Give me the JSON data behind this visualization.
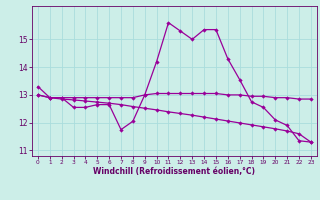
{
  "xlabel": "Windchill (Refroidissement éolien,°C)",
  "hours": [
    0,
    1,
    2,
    3,
    4,
    5,
    6,
    7,
    8,
    9,
    10,
    11,
    12,
    13,
    14,
    15,
    16,
    17,
    18,
    19,
    20,
    21,
    22,
    23
  ],
  "line1": [
    13.3,
    12.9,
    12.9,
    12.55,
    12.55,
    12.65,
    12.65,
    11.75,
    12.05,
    13.0,
    14.2,
    15.6,
    15.3,
    15.0,
    15.35,
    15.35,
    14.3,
    13.55,
    12.75,
    12.55,
    12.1,
    11.9,
    11.35,
    11.3
  ],
  "line2": [
    13.0,
    12.9,
    12.9,
    12.9,
    12.9,
    12.9,
    12.9,
    12.9,
    12.9,
    13.0,
    13.05,
    13.05,
    13.05,
    13.05,
    13.05,
    13.05,
    13.0,
    13.0,
    12.95,
    12.95,
    12.9,
    12.9,
    12.85,
    12.85
  ],
  "line3": [
    13.0,
    12.9,
    12.85,
    12.82,
    12.78,
    12.74,
    12.7,
    12.65,
    12.58,
    12.52,
    12.46,
    12.39,
    12.33,
    12.27,
    12.2,
    12.13,
    12.06,
    11.99,
    11.92,
    11.85,
    11.78,
    11.7,
    11.6,
    11.3
  ],
  "line_color": "#990099",
  "background_color": "#cceee8",
  "grid_color": "#aadddd",
  "ylim": [
    10.8,
    16.2
  ],
  "xlim": [
    -0.5,
    23.5
  ],
  "yticks": [
    11,
    12,
    13,
    14,
    15
  ],
  "xticks": [
    0,
    1,
    2,
    3,
    4,
    5,
    6,
    7,
    8,
    9,
    10,
    11,
    12,
    13,
    14,
    15,
    16,
    17,
    18,
    19,
    20,
    21,
    22,
    23
  ],
  "tick_color": "#660066",
  "spine_color": "#660066",
  "xlabel_color": "#660066",
  "xlabel_fontsize": 5.5,
  "ytick_fontsize": 5.5,
  "xtick_fontsize": 4.2,
  "marker": "D",
  "markersize": 2.2,
  "linewidth": 0.9
}
